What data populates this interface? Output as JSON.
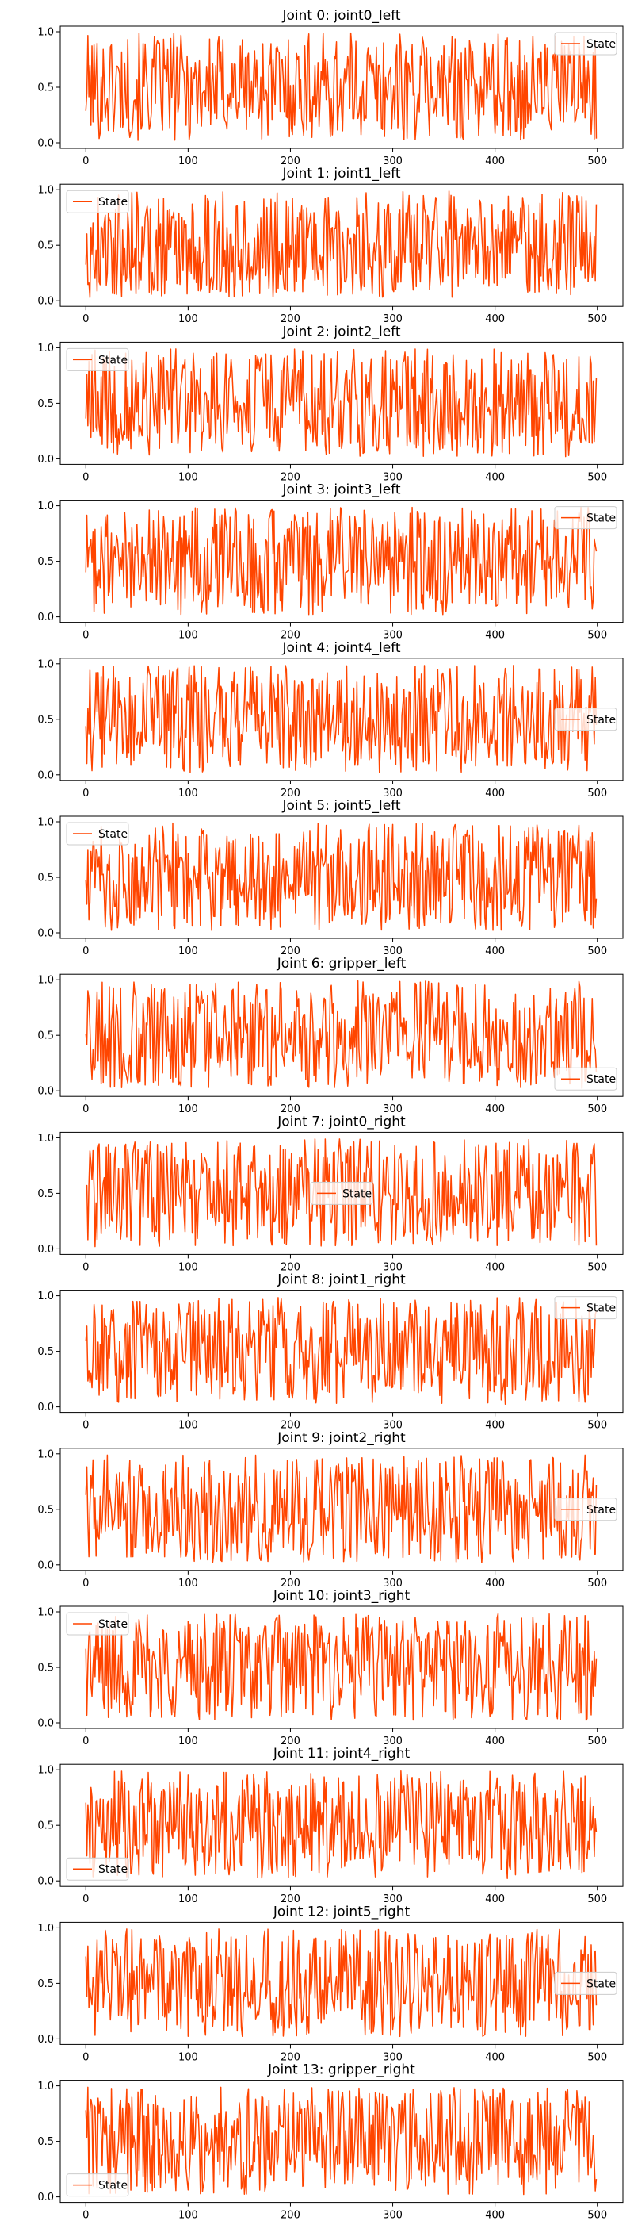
{
  "figure": {
    "background": "#ffffff",
    "series_color": "#ff4500",
    "legend_label": "State"
  },
  "chart_data": [
    {
      "type": "line",
      "title": "Joint 0: joint0_left",
      "xlim": [
        -25,
        525
      ],
      "ylim": [
        -0.05,
        1.05
      ],
      "xticks": [
        "0",
        "100",
        "200",
        "300",
        "400",
        "500"
      ],
      "yticks": [
        "0.0",
        "0.5",
        "1.0"
      ],
      "legend": "top-right",
      "series": [
        {
          "name": "State",
          "seed": 101
        }
      ]
    },
    {
      "type": "line",
      "title": "Joint 1: joint1_left",
      "xlim": [
        -25,
        525
      ],
      "ylim": [
        -0.05,
        1.05
      ],
      "xticks": [
        "0",
        "100",
        "200",
        "300",
        "400",
        "500"
      ],
      "yticks": [
        "0.0",
        "0.5",
        "1.0"
      ],
      "legend": "top-left",
      "series": [
        {
          "name": "State",
          "seed": 202
        }
      ]
    },
    {
      "type": "line",
      "title": "Joint 2: joint2_left",
      "xlim": [
        -25,
        525
      ],
      "ylim": [
        -0.05,
        1.05
      ],
      "xticks": [
        "0",
        "100",
        "200",
        "300",
        "400",
        "500"
      ],
      "yticks": [
        "0.0",
        "0.5",
        "1.0"
      ],
      "legend": "top-left",
      "series": [
        {
          "name": "State",
          "seed": 303
        }
      ]
    },
    {
      "type": "line",
      "title": "Joint 3: joint3_left",
      "xlim": [
        -25,
        525
      ],
      "ylim": [
        -0.05,
        1.05
      ],
      "xticks": [
        "0",
        "100",
        "200",
        "300",
        "400",
        "500"
      ],
      "yticks": [
        "0.0",
        "0.5",
        "1.0"
      ],
      "legend": "top-right",
      "series": [
        {
          "name": "State",
          "seed": 404
        }
      ]
    },
    {
      "type": "line",
      "title": "Joint 4: joint4_left",
      "xlim": [
        -25,
        525
      ],
      "ylim": [
        -0.05,
        1.05
      ],
      "xticks": [
        "0",
        "100",
        "200",
        "300",
        "400",
        "500"
      ],
      "yticks": [
        "0.0",
        "0.5",
        "1.0"
      ],
      "legend": "center-right",
      "series": [
        {
          "name": "State",
          "seed": 505
        }
      ]
    },
    {
      "type": "line",
      "title": "Joint 5: joint5_left",
      "xlim": [
        -25,
        525
      ],
      "ylim": [
        -0.05,
        1.05
      ],
      "xticks": [
        "0",
        "100",
        "200",
        "300",
        "400",
        "500"
      ],
      "yticks": [
        "0.0",
        "0.5",
        "1.0"
      ],
      "legend": "top-left",
      "series": [
        {
          "name": "State",
          "seed": 606
        }
      ]
    },
    {
      "type": "line",
      "title": "Joint 6: gripper_left",
      "xlim": [
        -25,
        525
      ],
      "ylim": [
        -0.05,
        1.05
      ],
      "xticks": [
        "0",
        "100",
        "200",
        "300",
        "400",
        "500"
      ],
      "yticks": [
        "0.0",
        "0.5",
        "1.0"
      ],
      "legend": "bottom-right",
      "series": [
        {
          "name": "State",
          "seed": 707
        }
      ]
    },
    {
      "type": "line",
      "title": "Joint 7: joint0_right",
      "xlim": [
        -25,
        525
      ],
      "ylim": [
        -0.05,
        1.05
      ],
      "xticks": [
        "0",
        "100",
        "200",
        "300",
        "400",
        "500"
      ],
      "yticks": [
        "0.0",
        "0.5",
        "1.0"
      ],
      "legend": "center",
      "series": [
        {
          "name": "State",
          "seed": 808
        }
      ]
    },
    {
      "type": "line",
      "title": "Joint 8: joint1_right",
      "xlim": [
        -25,
        525
      ],
      "ylim": [
        -0.05,
        1.05
      ],
      "xticks": [
        "0",
        "100",
        "200",
        "300",
        "400",
        "500"
      ],
      "yticks": [
        "0.0",
        "0.5",
        "1.0"
      ],
      "legend": "top-right",
      "series": [
        {
          "name": "State",
          "seed": 909
        }
      ]
    },
    {
      "type": "line",
      "title": "Joint 9: joint2_right",
      "xlim": [
        -25,
        525
      ],
      "ylim": [
        -0.05,
        1.05
      ],
      "xticks": [
        "0",
        "100",
        "200",
        "300",
        "400",
        "500"
      ],
      "yticks": [
        "0.0",
        "0.5",
        "1.0"
      ],
      "legend": "center-right",
      "series": [
        {
          "name": "State",
          "seed": 1010
        }
      ]
    },
    {
      "type": "line",
      "title": "Joint 10: joint3_right",
      "xlim": [
        -25,
        525
      ],
      "ylim": [
        -0.05,
        1.05
      ],
      "xticks": [
        "0",
        "100",
        "200",
        "300",
        "400",
        "500"
      ],
      "yticks": [
        "0.0",
        "0.5",
        "1.0"
      ],
      "legend": "top-left",
      "series": [
        {
          "name": "State",
          "seed": 1111
        }
      ]
    },
    {
      "type": "line",
      "title": "Joint 11: joint4_right",
      "xlim": [
        -25,
        525
      ],
      "ylim": [
        -0.05,
        1.05
      ],
      "xticks": [
        "0",
        "100",
        "200",
        "300",
        "400",
        "500"
      ],
      "yticks": [
        "0.0",
        "0.5",
        "1.0"
      ],
      "legend": "bottom-left",
      "series": [
        {
          "name": "State",
          "seed": 1212
        }
      ]
    },
    {
      "type": "line",
      "title": "Joint 12: joint5_right",
      "xlim": [
        -25,
        525
      ],
      "ylim": [
        -0.05,
        1.05
      ],
      "xticks": [
        "0",
        "100",
        "200",
        "300",
        "400",
        "500"
      ],
      "yticks": [
        "0.0",
        "0.5",
        "1.0"
      ],
      "legend": "center-right",
      "series": [
        {
          "name": "State",
          "seed": 1313
        }
      ]
    },
    {
      "type": "line",
      "title": "Joint 13: gripper_right",
      "xlim": [
        -25,
        525
      ],
      "ylim": [
        -0.05,
        1.05
      ],
      "xticks": [
        "0",
        "100",
        "200",
        "300",
        "400",
        "500"
      ],
      "yticks": [
        "0.0",
        "0.5",
        "1.0"
      ],
      "legend": "bottom-left",
      "series": [
        {
          "name": "State",
          "seed": 1414
        }
      ]
    }
  ]
}
